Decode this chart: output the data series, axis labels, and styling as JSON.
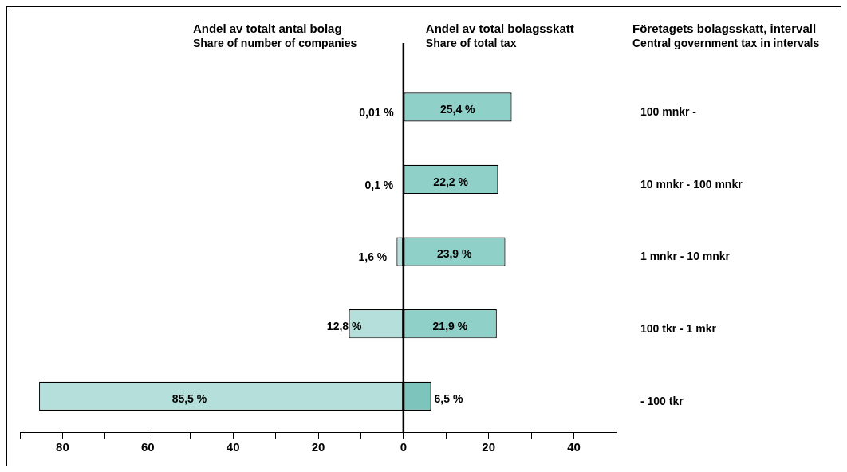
{
  "chart_data": {
    "type": "bar",
    "orientation": "horizontal",
    "categories": [
      "100 mnkr -",
      "10 mnkr - 100 mnkr",
      "1 mnkr - 10 mnkr",
      "100 tkr - 1 mkr",
      "- 100 tkr"
    ],
    "series": [
      {
        "color": "#b5dfda",
        "base": [
          -0.01,
          -0.1,
          -1.6,
          -12.8,
          -85.5
        ],
        "values": [
          0.01,
          0.1,
          1.6,
          12.8,
          85.5
        ],
        "value_labels": [
          "0,01 %",
          "0,1 %",
          "1,6 %",
          "12,8 %",
          "85,5 %"
        ]
      },
      {
        "colors": [
          "#8fd0c9",
          "#8fd0c9",
          "#8fd0c9",
          "#8fd0c9",
          "#7dc4bc"
        ],
        "values": [
          25.4,
          22.2,
          23.9,
          21.9,
          6.5
        ],
        "value_labels": [
          "25,4 %",
          "22,2 %",
          "23,9 %",
          "21,9 %",
          "6,5 %"
        ]
      }
    ],
    "xlim": [
      -90,
      50
    ],
    "xticks": [
      {
        "value": -90,
        "label": null
      },
      {
        "value": -80,
        "label": "80"
      },
      {
        "value": -70,
        "label": null
      },
      {
        "value": -60,
        "label": "60"
      },
      {
        "value": -50,
        "label": null
      },
      {
        "value": -40,
        "label": "40"
      },
      {
        "value": -30,
        "label": null
      },
      {
        "value": -20,
        "label": "20"
      },
      {
        "value": -10,
        "label": null
      },
      0,
      {
        "value": 10,
        "label": null
      },
      20,
      {
        "value": 30,
        "label": null
      },
      40,
      {
        "value": 50,
        "label": null
      }
    ],
    "ref_lines": [
      {
        "axis": "x",
        "value": 0,
        "color": "#000000"
      }
    ],
    "annotations": [
      "Andel av totalt antal bolag",
      "Share of number of companies",
      "Andel av total bolagsskatt",
      "Share of total tax",
      "Företagets bolagsskatt, intervall",
      "Central government tax in intervals"
    ],
    "grid": false,
    "legend": false
  }
}
